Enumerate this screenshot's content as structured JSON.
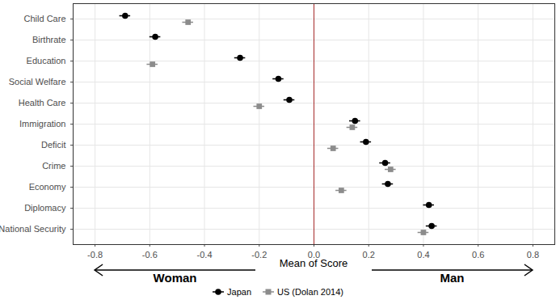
{
  "chart_data": {
    "type": "dot",
    "orientation": "horizontal",
    "x_label": "Mean of Score",
    "annotations": [
      "Woman",
      "Man"
    ],
    "categories": [
      "Child Care",
      "Birthrate",
      "Education",
      "Social Welfare",
      "Health Care",
      "Immigration",
      "Deficit",
      "Crime",
      "Economy",
      "Diplomacy",
      "National Security"
    ],
    "series": [
      {
        "name": "Japan",
        "color": "#000000",
        "marker": "circle",
        "values": [
          -0.69,
          -0.58,
          -0.27,
          -0.13,
          -0.09,
          0.15,
          0.19,
          0.26,
          0.27,
          0.42,
          0.43
        ],
        "errors": [
          0.02,
          0.02,
          0.02,
          0.02,
          0.02,
          0.02,
          0.02,
          0.02,
          0.02,
          0.02,
          0.02
        ]
      },
      {
        "name": "US (Dolan 2014)",
        "color": "#8c8c8c",
        "marker": "square",
        "values": [
          -0.46,
          null,
          -0.59,
          null,
          -0.2,
          0.14,
          0.07,
          0.28,
          0.1,
          null,
          0.4
        ],
        "errors": [
          0.02,
          null,
          0.02,
          null,
          0.02,
          0.02,
          0.02,
          0.02,
          0.02,
          null,
          0.02
        ]
      }
    ],
    "reference_x": 0,
    "xlim": [
      -0.88,
      0.88
    ],
    "xticks": [
      -0.8,
      -0.6,
      -0.4,
      -0.2,
      {
        "value": 0,
        "label": "0.0"
      },
      0.2,
      0.4,
      0.6,
      0.8
    ],
    "grid": true,
    "legend": "bottom"
  }
}
